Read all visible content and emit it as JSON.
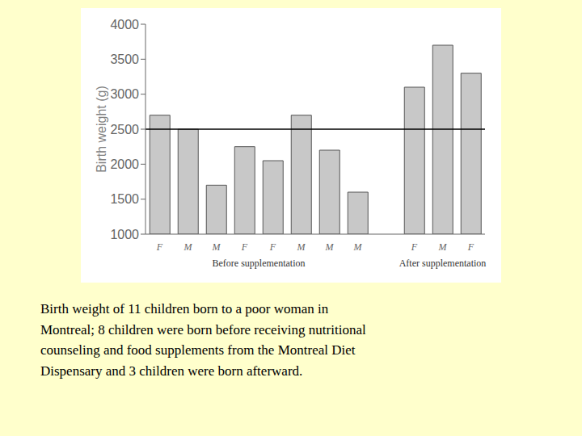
{
  "chart_data": {
    "type": "bar",
    "categories": [
      "F",
      "M",
      "M",
      "F",
      "F",
      "M",
      "M",
      "M",
      null,
      "F",
      "M",
      "F"
    ],
    "values": [
      2700,
      2500,
      1700,
      2250,
      2050,
      2700,
      2200,
      1600,
      null,
      3100,
      3700,
      3300
    ],
    "color": "#c8c8c8",
    "ylabel": "Birth weight (g)",
    "ylim": [
      1000,
      4000
    ],
    "yticks": [
      1000,
      1500,
      2000,
      2500,
      3000,
      3500,
      4000
    ],
    "hline": 2500,
    "group_labels": [
      "Before supplementation",
      "After supplementation"
    ],
    "caption": [
      "Birth weight of 11 children born to a poor woman in",
      "Montreal; 8 children were born before receiving nutritional",
      "counseling and food supplements from the Montreal Diet",
      "Dispensary and 3 children were born afterward."
    ],
    "grid": false
  }
}
